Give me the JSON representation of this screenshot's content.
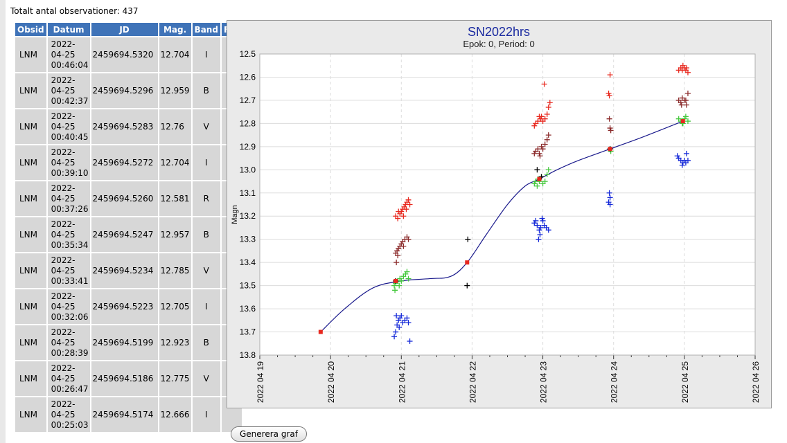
{
  "header": {
    "total_text": "Totalt antal observationer: 437"
  },
  "table": {
    "columns": [
      "Obsid",
      "Datum",
      "JD",
      "Mag.",
      "Band",
      "Fas"
    ],
    "rows": [
      {
        "obsid": "LNM",
        "date": "2022-",
        "date2": "04-25",
        "time": "00:46:04",
        "jd": "2459694.5320",
        "mag": "12.704",
        "band": "I"
      },
      {
        "obsid": "LNM",
        "date": "2022-",
        "date2": "04-25",
        "time": "00:42:37",
        "jd": "2459694.5296",
        "mag": "12.959",
        "band": "B"
      },
      {
        "obsid": "LNM",
        "date": "2022-",
        "date2": "04-25",
        "time": "00:40:45",
        "jd": "2459694.5283",
        "mag": "12.76",
        "band": "V"
      },
      {
        "obsid": "LNM",
        "date": "2022-",
        "date2": "04-25",
        "time": "00:39:10",
        "jd": "2459694.5272",
        "mag": "12.704",
        "band": "I"
      },
      {
        "obsid": "LNM",
        "date": "2022-",
        "date2": "04-25",
        "time": "00:37:26",
        "jd": "2459694.5260",
        "mag": "12.581",
        "band": "R"
      },
      {
        "obsid": "LNM",
        "date": "2022-",
        "date2": "04-25",
        "time": "00:35:34",
        "jd": "2459694.5247",
        "mag": "12.957",
        "band": "B"
      },
      {
        "obsid": "LNM",
        "date": "2022-",
        "date2": "04-25",
        "time": "00:33:41",
        "jd": "2459694.5234",
        "mag": "12.785",
        "band": "V"
      },
      {
        "obsid": "LNM",
        "date": "2022-",
        "date2": "04-25",
        "time": "00:32:06",
        "jd": "2459694.5223",
        "mag": "12.705",
        "band": "I"
      },
      {
        "obsid": "LNM",
        "date": "2022-",
        "date2": "04-25",
        "time": "00:28:39",
        "jd": "2459694.5199",
        "mag": "12.923",
        "band": "B"
      },
      {
        "obsid": "LNM",
        "date": "2022-",
        "date2": "04-25",
        "time": "00:26:47",
        "jd": "2459694.5186",
        "mag": "12.775",
        "band": "V"
      },
      {
        "obsid": "LNM",
        "date": "2022-",
        "date2": "04-25",
        "time": "00:25:03",
        "jd": "2459694.5174",
        "mag": "12.666",
        "band": "I"
      }
    ]
  },
  "button": {
    "label": "Generera graf"
  },
  "chart_data": {
    "type": "scatter",
    "title": "SN2022hrs",
    "subtitle": "Epok: 0, Period: 0",
    "ylabel": "Magn",
    "xlabel": "",
    "ylim": [
      12.5,
      13.8
    ],
    "y_inverted": true,
    "yticks": [
      "12.5",
      "12.6",
      "12.7",
      "12.8",
      "12.9",
      "13.0",
      "13.1",
      "13.2",
      "13.3",
      "13.4",
      "13.5",
      "13.6",
      "13.7",
      "13.8"
    ],
    "xlim": [
      0,
      7
    ],
    "xticks": [
      "2022 04 19",
      "2022 04 20",
      "2022 04 21",
      "2022 04 22",
      "2022 04 23",
      "2022 04 24",
      "2022 04 25",
      "2022 04 26"
    ],
    "colors": {
      "I": "#8b2b2b",
      "R": "#e8281e",
      "V": "#44c83c",
      "B": "#1428d8",
      "other": "#000000",
      "fit": "#1a1a8c",
      "fitpoint": "#e8281e"
    },
    "series": [
      {
        "name": "R",
        "color": "#e8281e",
        "points": [
          [
            1.92,
            13.2
          ],
          [
            1.95,
            13.21
          ],
          [
            1.98,
            13.19
          ],
          [
            2.0,
            13.18
          ],
          [
            2.02,
            13.17
          ],
          [
            2.04,
            13.16
          ],
          [
            2.06,
            13.15
          ],
          [
            2.08,
            13.14
          ],
          [
            2.1,
            13.13
          ],
          [
            2.12,
            13.15
          ],
          [
            1.96,
            13.18
          ],
          [
            2.03,
            13.2
          ],
          [
            2.07,
            13.17
          ],
          [
            3.88,
            12.81
          ],
          [
            3.9,
            12.8
          ],
          [
            3.93,
            12.79
          ],
          [
            3.95,
            12.77
          ],
          [
            3.97,
            12.78
          ],
          [
            4.0,
            12.79
          ],
          [
            4.03,
            12.78
          ],
          [
            4.06,
            12.76
          ],
          [
            4.08,
            12.73
          ],
          [
            4.1,
            12.71
          ],
          [
            4.02,
            12.63
          ],
          [
            3.98,
            12.77
          ],
          [
            4.95,
            12.59
          ],
          [
            4.93,
            12.67
          ],
          [
            4.94,
            12.68
          ],
          [
            5.92,
            12.57
          ],
          [
            5.95,
            12.56
          ],
          [
            5.98,
            12.55
          ],
          [
            6.0,
            12.56
          ],
          [
            6.02,
            12.57
          ],
          [
            6.05,
            12.58
          ],
          [
            5.97,
            12.57
          ],
          [
            6.03,
            12.56
          ]
        ]
      },
      {
        "name": "I",
        "color": "#8b2b2b",
        "points": [
          [
            1.92,
            13.36
          ],
          [
            1.94,
            13.35
          ],
          [
            1.96,
            13.34
          ],
          [
            1.98,
            13.33
          ],
          [
            2.0,
            13.32
          ],
          [
            2.02,
            13.31
          ],
          [
            2.05,
            13.3
          ],
          [
            2.08,
            13.29
          ],
          [
            2.1,
            13.3
          ],
          [
            1.93,
            13.4
          ],
          [
            1.95,
            13.37
          ],
          [
            2.03,
            13.33
          ],
          [
            3.88,
            12.93
          ],
          [
            3.9,
            12.92
          ],
          [
            3.93,
            12.91
          ],
          [
            3.95,
            12.93
          ],
          [
            3.98,
            12.9
          ],
          [
            4.0,
            12.91
          ],
          [
            4.03,
            12.89
          ],
          [
            4.06,
            12.87
          ],
          [
            4.08,
            12.85
          ],
          [
            3.96,
            12.94
          ],
          [
            4.94,
            12.78
          ],
          [
            4.95,
            12.82
          ],
          [
            4.96,
            12.83
          ],
          [
            5.92,
            12.7
          ],
          [
            5.95,
            12.71
          ],
          [
            5.97,
            12.69
          ],
          [
            6.0,
            12.7
          ],
          [
            6.02,
            12.7
          ],
          [
            6.05,
            12.67
          ],
          [
            5.96,
            12.72
          ],
          [
            6.03,
            12.72
          ]
        ]
      },
      {
        "name": "V",
        "color": "#44c83c",
        "points": [
          [
            1.9,
            13.5
          ],
          [
            1.92,
            13.49
          ],
          [
            1.95,
            13.48
          ],
          [
            1.98,
            13.47
          ],
          [
            2.0,
            13.48
          ],
          [
            2.03,
            13.46
          ],
          [
            2.06,
            13.45
          ],
          [
            2.08,
            13.44
          ],
          [
            2.1,
            13.47
          ],
          [
            1.91,
            13.52
          ],
          [
            1.97,
            13.5
          ],
          [
            3.88,
            13.06
          ],
          [
            3.9,
            13.05
          ],
          [
            3.93,
            13.04
          ],
          [
            3.95,
            13.05
          ],
          [
            3.98,
            13.03
          ],
          [
            4.0,
            13.06
          ],
          [
            4.03,
            13.05
          ],
          [
            4.06,
            13.02
          ],
          [
            4.08,
            13.0
          ],
          [
            3.92,
            13.07
          ],
          [
            4.95,
            12.91
          ],
          [
            4.96,
            12.92
          ],
          [
            5.92,
            12.78
          ],
          [
            5.95,
            12.79
          ],
          [
            5.98,
            12.8
          ],
          [
            6.0,
            12.78
          ],
          [
            6.02,
            12.77
          ],
          [
            6.05,
            12.79
          ],
          [
            5.97,
            12.8
          ]
        ]
      },
      {
        "name": "B",
        "color": "#1428d8",
        "points": [
          [
            1.9,
            13.72
          ],
          [
            1.92,
            13.7
          ],
          [
            1.94,
            13.67
          ],
          [
            1.96,
            13.65
          ],
          [
            1.98,
            13.64
          ],
          [
            2.0,
            13.63
          ],
          [
            2.02,
            13.66
          ],
          [
            2.05,
            13.65
          ],
          [
            2.08,
            13.64
          ],
          [
            2.1,
            13.66
          ],
          [
            1.93,
            13.63
          ],
          [
            2.12,
            13.74
          ],
          [
            1.97,
            13.68
          ],
          [
            3.88,
            13.23
          ],
          [
            3.9,
            13.22
          ],
          [
            3.92,
            13.24
          ],
          [
            3.95,
            13.26
          ],
          [
            3.97,
            13.25
          ],
          [
            4.0,
            13.22
          ],
          [
            4.02,
            13.24
          ],
          [
            4.05,
            13.25
          ],
          [
            4.08,
            13.26
          ],
          [
            3.96,
            13.28
          ],
          [
            3.94,
            13.3
          ],
          [
            3.99,
            13.21
          ],
          [
            4.94,
            13.1
          ],
          [
            4.95,
            13.12
          ],
          [
            4.93,
            13.14
          ],
          [
            4.95,
            13.15
          ],
          [
            5.9,
            12.94
          ],
          [
            5.92,
            12.95
          ],
          [
            5.95,
            12.96
          ],
          [
            5.98,
            12.97
          ],
          [
            6.0,
            12.96
          ],
          [
            6.02,
            12.97
          ],
          [
            6.05,
            12.96
          ],
          [
            6.03,
            12.93
          ],
          [
            5.97,
            12.98
          ]
        ]
      },
      {
        "name": "other",
        "color": "#000000",
        "points": [
          [
            1.92,
            13.48
          ],
          [
            2.94,
            13.3
          ],
          [
            2.93,
            13.5
          ],
          [
            3.92,
            13.0
          ],
          [
            4.95,
            12.91
          ],
          [
            3.98,
            13.03
          ]
        ]
      }
    ],
    "fit": {
      "color": "#1a1a8c",
      "points": [
        [
          0.86,
          13.7
        ],
        [
          1.2,
          13.6
        ],
        [
          1.6,
          13.51
        ],
        [
          2.0,
          13.48
        ],
        [
          2.4,
          13.47
        ],
        [
          2.7,
          13.46
        ],
        [
          2.93,
          13.4
        ],
        [
          3.2,
          13.28
        ],
        [
          3.5,
          13.15
        ],
        [
          3.75,
          13.07
        ],
        [
          3.95,
          13.04
        ],
        [
          4.2,
          13.0
        ],
        [
          4.5,
          12.96
        ],
        [
          4.95,
          12.91
        ],
        [
          5.4,
          12.86
        ],
        [
          5.98,
          12.79
        ]
      ]
    },
    "fit_points": [
      [
        0.86,
        13.7
      ],
      [
        1.92,
        13.48
      ],
      [
        2.93,
        13.4
      ],
      [
        3.95,
        13.04
      ],
      [
        4.95,
        12.91
      ],
      [
        5.98,
        12.79
      ]
    ]
  }
}
